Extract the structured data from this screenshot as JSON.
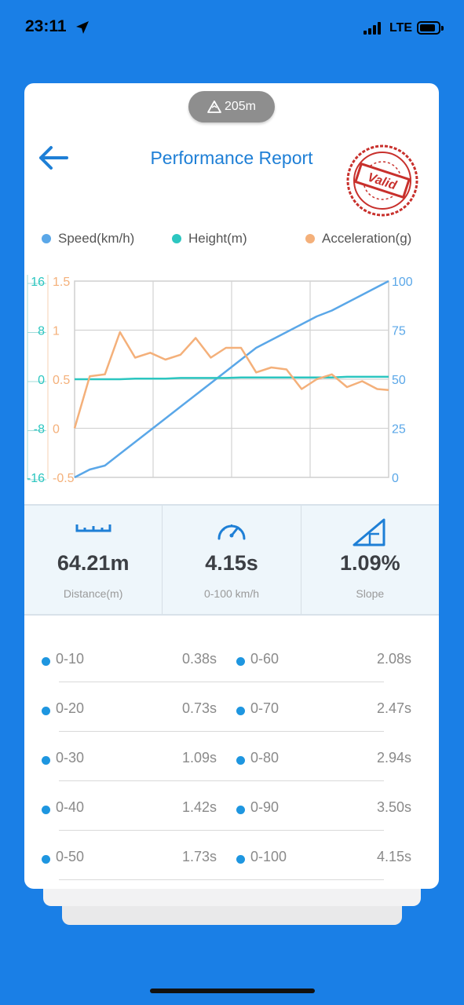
{
  "status_bar": {
    "time": "23:11",
    "network": "LTE"
  },
  "altitude_badge": "205m",
  "header": {
    "title": "Performance Report",
    "stamp_text": "Valid"
  },
  "legend": [
    {
      "label": "Speed(km/h)",
      "color": "#5aa7e8"
    },
    {
      "label": "Height(m)",
      "color": "#2cc6c0"
    },
    {
      "label": "Acceleration(g)",
      "color": "#f4b07a"
    }
  ],
  "chart_data": {
    "type": "line",
    "axes": {
      "height": {
        "ticks": [
          "16",
          "8",
          "0",
          "-8",
          "-16"
        ],
        "range": [
          -16,
          16
        ],
        "color": "#2cc6c0"
      },
      "acceleration": {
        "ticks": [
          "1.5",
          "1",
          "0.5",
          "0",
          "-0.5"
        ],
        "range": [
          -0.5,
          1.5
        ],
        "color": "#f4b07a"
      },
      "speed": {
        "ticks": [
          "100",
          "75",
          "50",
          "25",
          "0"
        ],
        "range": [
          0,
          100
        ],
        "color": "#5aa7e8"
      }
    },
    "x": [
      0,
      0.2,
      0.4,
      0.6,
      0.8,
      1.0,
      1.2,
      1.4,
      1.6,
      1.8,
      2.0,
      2.2,
      2.4,
      2.6,
      2.8,
      3.0,
      3.2,
      3.4,
      3.6,
      3.8,
      4.0,
      4.15
    ],
    "series": [
      {
        "name": "Speed(km/h)",
        "axis": "speed",
        "values": [
          0,
          4,
          6,
          12,
          18,
          24,
          30,
          36,
          42,
          48,
          54,
          60,
          66,
          70,
          74,
          78,
          82,
          85,
          89,
          93,
          97,
          100
        ]
      },
      {
        "name": "Height(m)",
        "axis": "height",
        "values": [
          0,
          0,
          0,
          0,
          0.1,
          0.1,
          0.1,
          0.2,
          0.2,
          0.2,
          0.2,
          0.3,
          0.3,
          0.3,
          0.3,
          0.3,
          0.3,
          0.3,
          0.4,
          0.4,
          0.4,
          0.4
        ]
      },
      {
        "name": "Acceleration(g)",
        "axis": "acceleration",
        "values": [
          0,
          0.53,
          0.55,
          0.98,
          0.72,
          0.77,
          0.7,
          0.75,
          0.92,
          0.72,
          0.82,
          0.82,
          0.57,
          0.62,
          0.6,
          0.4,
          0.5,
          0.55,
          0.42,
          0.48,
          0.4,
          0.39
        ]
      }
    ],
    "grid": true
  },
  "stats": [
    {
      "value": "64.21m",
      "label": "Distance(m)",
      "icon": "ruler-icon"
    },
    {
      "value": "4.15s",
      "label": "0-100 km/h",
      "icon": "speedometer-icon"
    },
    {
      "value": "1.09%",
      "label": "Slope",
      "icon": "slope-icon"
    }
  ],
  "splits": [
    {
      "left_label": "0-10",
      "left_time": "0.38s",
      "right_label": "0-60",
      "right_time": "2.08s"
    },
    {
      "left_label": "0-20",
      "left_time": "0.73s",
      "right_label": "0-70",
      "right_time": "2.47s"
    },
    {
      "left_label": "0-30",
      "left_time": "1.09s",
      "right_label": "0-80",
      "right_time": "2.94s"
    },
    {
      "left_label": "0-40",
      "left_time": "1.42s",
      "right_label": "0-90",
      "right_time": "3.50s"
    },
    {
      "left_label": "0-50",
      "left_time": "1.73s",
      "right_label": "0-100",
      "right_time": "4.15s"
    }
  ]
}
